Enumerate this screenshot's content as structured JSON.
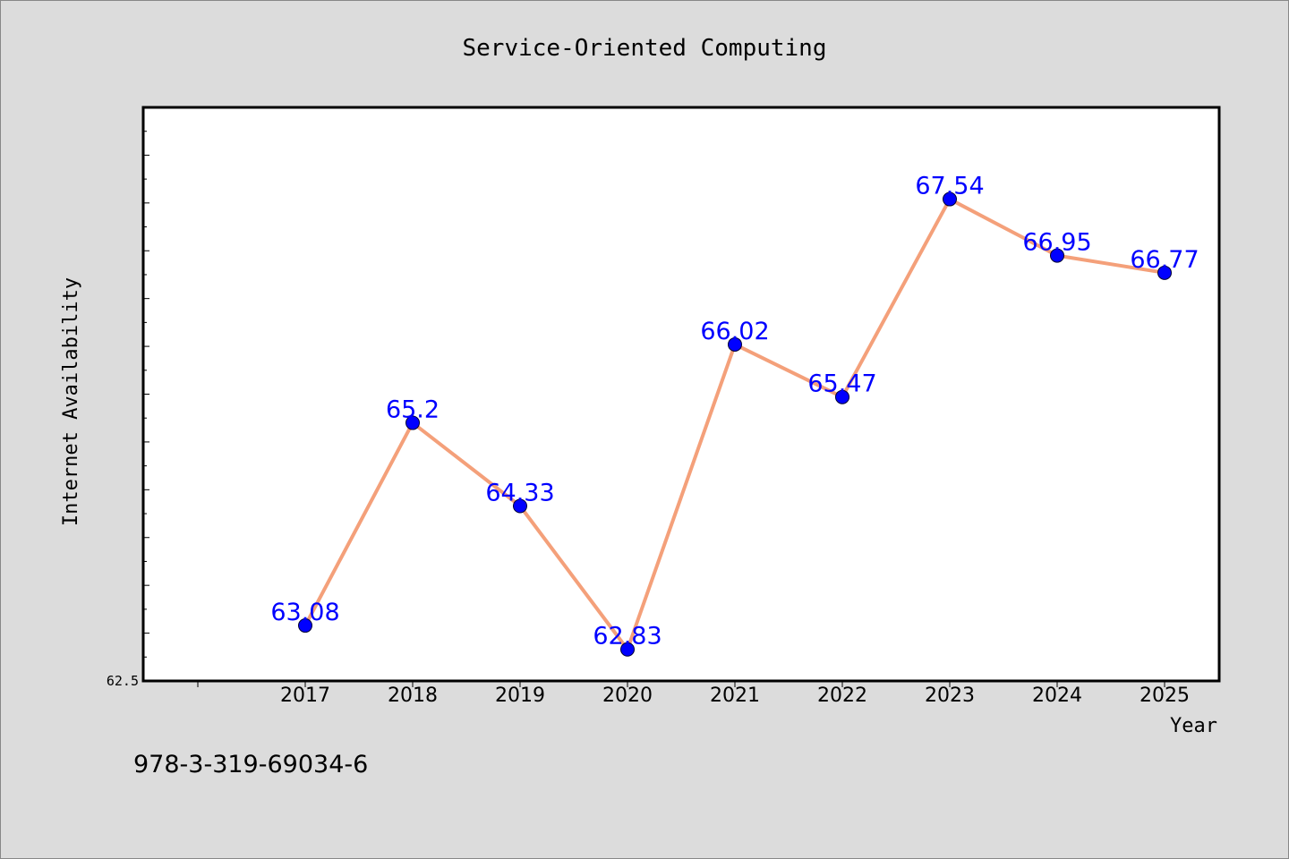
{
  "chart_data": {
    "type": "line",
    "title": "Service-Oriented Computing",
    "xlabel": "Year",
    "ylabel": "Internet Availability",
    "categories": [
      "2017",
      "2018",
      "2019",
      "2020",
      "2021",
      "2022",
      "2023",
      "2024",
      "2025"
    ],
    "series": [
      {
        "values": [
          63.08,
          65.2,
          64.33,
          62.83,
          66.02,
          65.47,
          67.54,
          66.95,
          66.77
        ],
        "data_labels": [
          "63.08",
          "65.2",
          "64.33",
          "62.83",
          "66.02",
          "65.47",
          "67.54",
          "66.95",
          "66.77"
        ]
      }
    ],
    "ylim": [
      62.5,
      68.5
    ],
    "y_tick_labels": [
      "62.5"
    ],
    "grid": false,
    "legend": "none",
    "colors": {
      "line": "#f4a07a",
      "marker": "#0000ff",
      "data_label": "#0000ff",
      "background": "#dcdcdc",
      "plot_background": "#ffffff"
    }
  },
  "footer": {
    "isbn": "978-3-319-69034-6"
  }
}
